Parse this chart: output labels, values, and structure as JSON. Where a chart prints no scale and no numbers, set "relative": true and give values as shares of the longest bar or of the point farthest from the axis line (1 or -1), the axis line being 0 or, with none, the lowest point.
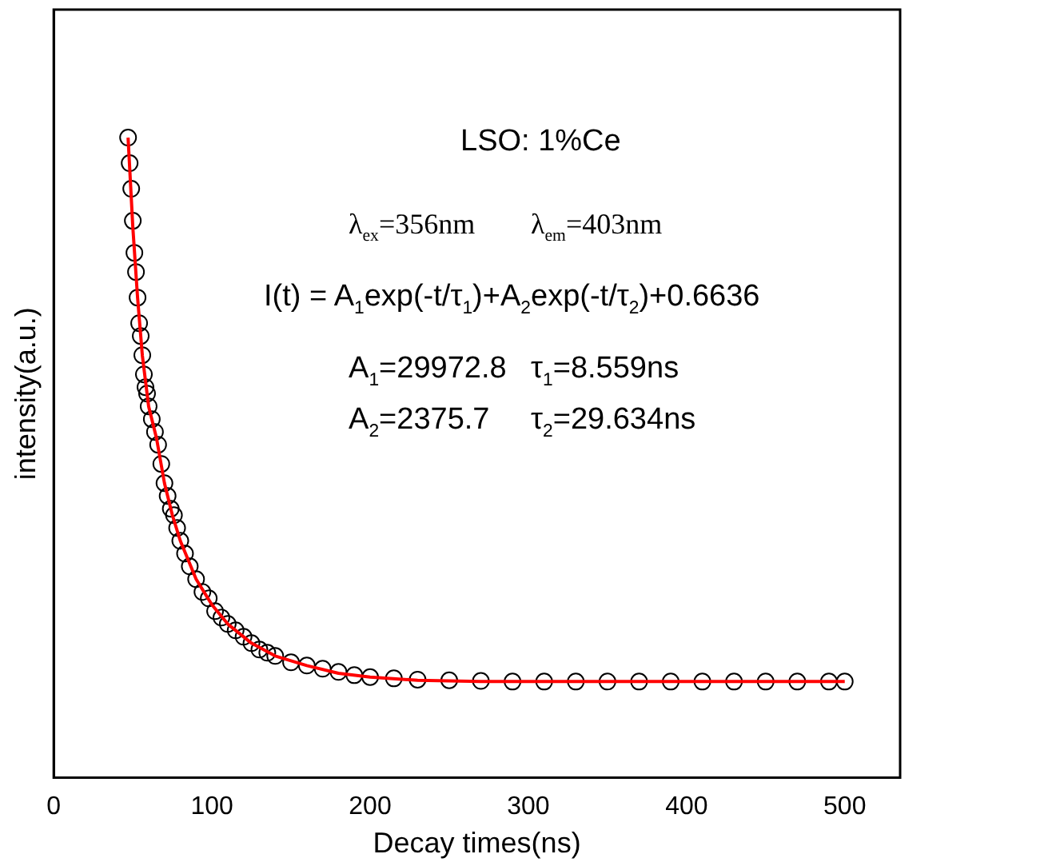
{
  "chart_data": {
    "type": "scatter",
    "xlabel": "Decay times(ns)",
    "ylabel": "intensity(a.u.)",
    "relative": true,
    "xlim": [
      0,
      535
    ],
    "xticks": [
      0,
      100,
      200,
      300,
      400,
      500
    ],
    "tick_labels": "x",
    "grid": false,
    "legend": false,
    "marker": "circle",
    "annotations": [
      "LSO: 1%Ce",
      "λ$_{ex}$=356nm",
      "λ$_{em}$=403nm",
      "I(t) = A$_{1}$exp(-t/τ$_{1}$)+A$_{2}$exp(-t/τ$_{2}$)+0.6636",
      "A$_{1}$=29972.8",
      "τ$_{1}$=8.559ns",
      "A$_{2}$=2375.7",
      "τ$_{2}$=29.634ns"
    ],
    "series": [
      {
        "color": "#000000",
        "x": [
          47,
          48,
          49,
          50,
          51,
          52,
          53,
          54,
          55,
          56,
          57,
          58,
          59,
          60,
          62,
          64,
          66,
          68,
          70,
          72,
          74,
          76,
          78,
          80,
          83,
          86,
          90,
          94,
          98,
          102,
          106,
          110,
          115,
          120,
          125,
          130,
          135,
          140,
          150,
          160,
          170,
          180,
          190,
          200,
          215,
          230,
          250,
          270,
          290,
          310,
          330,
          350,
          370,
          390,
          410,
          430,
          450,
          470,
          490,
          500
        ],
        "values": [
          1.0,
          0.96,
          0.92,
          0.87,
          0.82,
          0.79,
          0.75,
          0.71,
          0.69,
          0.66,
          0.63,
          0.61,
          0.6,
          0.58,
          0.56,
          0.54,
          0.52,
          0.49,
          0.46,
          0.44,
          0.42,
          0.41,
          0.39,
          0.37,
          0.35,
          0.33,
          0.31,
          0.29,
          0.28,
          0.26,
          0.25,
          0.24,
          0.23,
          0.22,
          0.21,
          0.2,
          0.195,
          0.19,
          0.18,
          0.175,
          0.17,
          0.165,
          0.16,
          0.157,
          0.155,
          0.153,
          0.152,
          0.151,
          0.15,
          0.15,
          0.15,
          0.15,
          0.15,
          0.15,
          0.15,
          0.15,
          0.15,
          0.15,
          0.15,
          0.15
        ]
      },
      {
        "type": "line",
        "color": "#ff0000",
        "marker": "none",
        "x": [
          47,
          50,
          53,
          56,
          60,
          65,
          70,
          75,
          80,
          90,
          100,
          110,
          125,
          140,
          160,
          180,
          200,
          230,
          270,
          350,
          500
        ],
        "values": [
          1.0,
          0.86,
          0.75,
          0.66,
          0.58,
          0.53,
          0.46,
          0.41,
          0.37,
          0.31,
          0.27,
          0.24,
          0.21,
          0.19,
          0.175,
          0.163,
          0.157,
          0.152,
          0.15,
          0.15,
          0.15
        ]
      }
    ]
  }
}
